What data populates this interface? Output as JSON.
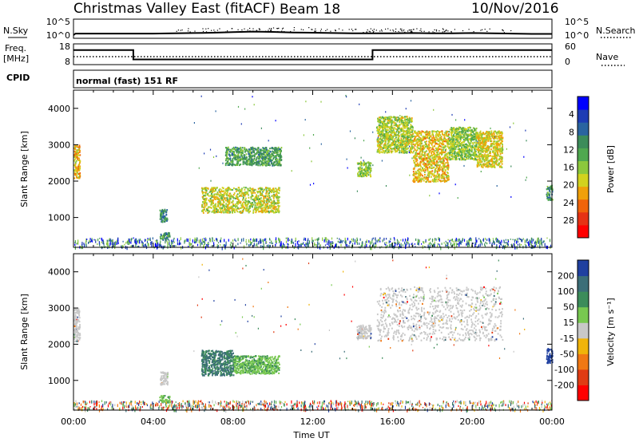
{
  "header": {
    "station": "Christmas Valley East (fitACF)",
    "beam": "Beam 18",
    "date": "10/Nov/2016"
  },
  "colors": {
    "axis": "#000000",
    "velocity_ground": "#c8c8c8"
  },
  "chart_data": [
    {
      "type": "line",
      "name": "noise",
      "left_label": "N.Sky",
      "right_label": "N.Search",
      "ytick_labels_left": [
        "10^5",
        "10^0"
      ],
      "ytick_labels_right": [
        "10^5",
        "10^0"
      ],
      "x_range_hours": [
        0,
        24
      ],
      "series": [
        {
          "name": "N.Sky",
          "x": [
            0,
            0.1,
            1,
            2,
            3,
            4,
            5,
            6,
            7,
            8,
            9,
            10,
            11,
            12,
            13,
            14,
            15,
            16,
            17,
            18,
            19,
            20,
            21,
            22,
            23,
            24
          ],
          "y_log10": [
            0.3,
            0.8,
            0.8,
            0.8,
            0.8,
            0.8,
            0.9,
            1.0,
            1.1,
            1.3,
            1.5,
            1.4,
            1.2,
            1.1,
            1.0,
            0.9,
            0.9,
            0.9,
            1.0,
            0.9,
            0.9,
            1.0,
            0.9,
            0.8,
            0.7,
            0.7
          ]
        },
        {
          "name": "N.Search",
          "line_style": "dotted",
          "x": [],
          "y_log10": []
        }
      ]
    },
    {
      "type": "line",
      "name": "frequency",
      "left_label": "Freq.",
      "left_unit": "[MHz]",
      "right_label": "Nave",
      "ytick_labels_left": [
        "18",
        "8"
      ],
      "ytick_labels_right": [
        "60",
        "0"
      ],
      "x_range_hours": [
        0,
        24
      ],
      "series": [
        {
          "name": "Freq.",
          "x": [
            0,
            3.0,
            3.0,
            15.0,
            15.0,
            24
          ],
          "y": [
            15.0,
            15.0,
            10.5,
            10.5,
            15.0,
            15.0
          ]
        },
        {
          "name": "Nave",
          "line_style": "dotted",
          "x": [
            0,
            24
          ],
          "y": [
            23,
            23
          ]
        }
      ]
    },
    {
      "type": "text",
      "name": "cpid",
      "label": "CPID",
      "value": "normal (fast) 151 RF"
    },
    {
      "type": "heatmap",
      "name": "power",
      "ylabel": "Slant Range [km]",
      "ytick_labels": [
        "1000",
        "2000",
        "3000",
        "4000"
      ],
      "y_range": [
        180,
        4500
      ],
      "x_range_hours": [
        0,
        24
      ],
      "colorbar": {
        "label": "Power [dB]",
        "tick_labels": [
          "4",
          "8",
          "12",
          "16",
          "20",
          "24",
          "28"
        ],
        "range": [
          0,
          30
        ],
        "colors": [
          "#0000ff",
          "#1e3cb4",
          "#2a64a0",
          "#3c8c5a",
          "#4fa84f",
          "#8cc83c",
          "#d2d21e",
          "#f0a00a",
          "#f0640a",
          "#e63214",
          "#ff0000"
        ]
      },
      "regions": [
        {
          "x0": 0.0,
          "x1": 0.3,
          "y0": 2100,
          "y1": 3000,
          "power": 20
        },
        {
          "x0": 4.3,
          "x1": 4.7,
          "y0": 900,
          "y1": 1250,
          "power": 9
        },
        {
          "x0": 4.3,
          "x1": 4.8,
          "y0": 400,
          "y1": 600,
          "power": 10
        },
        {
          "x0": 6.4,
          "x1": 10.3,
          "y0": 1150,
          "y1": 1850,
          "power": 17
        },
        {
          "x0": 7.6,
          "x1": 10.4,
          "y0": 2450,
          "y1": 2950,
          "power": 11
        },
        {
          "x0": 14.2,
          "x1": 14.9,
          "y0": 2150,
          "y1": 2550,
          "power": 15
        },
        {
          "x0": 15.2,
          "x1": 17.0,
          "y0": 2800,
          "y1": 3800,
          "power": 16
        },
        {
          "x0": 17.0,
          "x1": 18.8,
          "y0": 2000,
          "y1": 3400,
          "power": 19
        },
        {
          "x0": 18.8,
          "x1": 20.2,
          "y0": 2600,
          "y1": 3500,
          "power": 15
        },
        {
          "x0": 20.2,
          "x1": 21.5,
          "y0": 2400,
          "y1": 3400,
          "power": 18
        },
        {
          "x0": 23.7,
          "x1": 24.0,
          "y0": 1500,
          "y1": 1900,
          "power": 10
        }
      ]
    },
    {
      "type": "heatmap",
      "name": "velocity",
      "ylabel": "Slant Range [km]",
      "ytick_labels": [
        "1000",
        "2000",
        "3000",
        "4000"
      ],
      "y_range": [
        180,
        4500
      ],
      "xlabel": "Time UT",
      "xtick_labels": [
        "00:00",
        "04:00",
        "08:00",
        "12:00",
        "16:00",
        "20:00",
        "00:00"
      ],
      "x_range_hours": [
        0,
        24
      ],
      "colorbar": {
        "label": "Velocity [m s⁻¹]",
        "tick_labels": [
          "200",
          "100",
          "50",
          "15",
          "-15",
          "-50",
          "-100",
          "-200"
        ],
        "colors": [
          "#2040a0",
          "#3c6e78",
          "#3c8c5a",
          "#78c850",
          "#c8c8c8",
          "#f0b40a",
          "#f07814",
          "#e03c14",
          "#ff0000"
        ]
      },
      "regions": [
        {
          "x0": 0.0,
          "x1": 0.3,
          "y0": 2100,
          "y1": 3000,
          "velocity": 0
        },
        {
          "x0": 4.3,
          "x1": 4.7,
          "y0": 900,
          "y1": 1250,
          "velocity": 0
        },
        {
          "x0": 4.3,
          "x1": 4.8,
          "y0": 400,
          "y1": 600,
          "velocity": 60
        },
        {
          "x0": 6.4,
          "x1": 8.0,
          "y0": 1150,
          "y1": 1850,
          "velocity": 120
        },
        {
          "x0": 8.0,
          "x1": 10.3,
          "y0": 1200,
          "y1": 1700,
          "velocity": 70
        },
        {
          "x0": 14.2,
          "x1": 14.9,
          "y0": 2150,
          "y1": 2550,
          "velocity": 0
        },
        {
          "x0": 15.2,
          "x1": 21.5,
          "y0": 2100,
          "y1": 3600,
          "velocity": 0
        },
        {
          "x0": 23.7,
          "x1": 24.0,
          "y0": 1500,
          "y1": 1900,
          "velocity": 180
        }
      ]
    }
  ]
}
